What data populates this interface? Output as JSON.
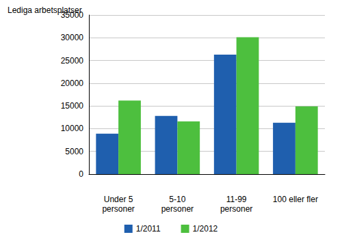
{
  "chart_data": {
    "type": "bar",
    "y_label": "Lediga arbetsplatser",
    "categories": [
      "Under 5\npersoner",
      "5-10\npersoner",
      "11-99\npersoner",
      "100 eller fler"
    ],
    "series": [
      {
        "name": "1/2011",
        "color": "#1f5fae",
        "values": [
          8900,
          12800,
          26300,
          11300
        ]
      },
      {
        "name": "1/2012",
        "color": "#4dbf3e",
        "values": [
          16200,
          11600,
          30100,
          14900
        ]
      }
    ],
    "ylim": [
      0,
      35000
    ],
    "yticks": [
      0,
      5000,
      10000,
      15000,
      20000,
      25000,
      30000,
      35000
    ],
    "grid": true,
    "legend": "bottom"
  }
}
